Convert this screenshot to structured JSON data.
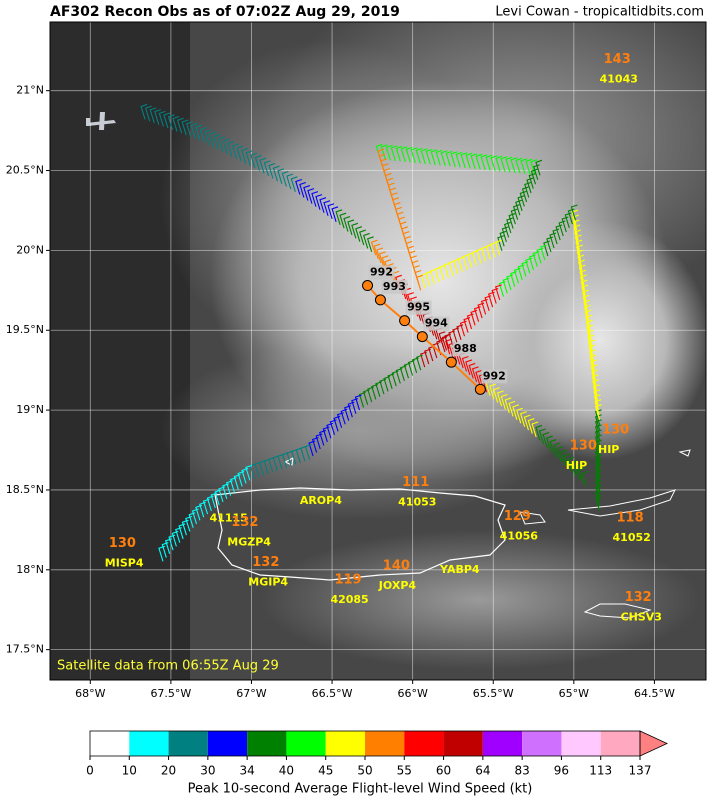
{
  "chart_data": {
    "type": "recon-map",
    "title": "AF302 Recon Obs as of 07:02Z Aug 29, 2019",
    "credit": "Levi Cowan - tropicaltidbits.com",
    "note": "Satellite data from 06:55Z Aug 29",
    "xlim": [
      -68.25,
      -64.18
    ],
    "ylim": [
      17.31,
      21.43
    ],
    "xticks": [
      {
        "value": -68,
        "label": "68°W"
      },
      {
        "value": -67.5,
        "label": "67.5°W"
      },
      {
        "value": -67,
        "label": "67°W"
      },
      {
        "value": -66.5,
        "label": "66.5°W"
      },
      {
        "value": -66,
        "label": "66°W"
      },
      {
        "value": -65.5,
        "label": "65.5°W"
      },
      {
        "value": -65,
        "label": "65°W"
      },
      {
        "value": -64.5,
        "label": "64.5°W"
      }
    ],
    "yticks": [
      {
        "value": 17.5,
        "label": "17.5°N"
      },
      {
        "value": 18,
        "label": "18°N"
      },
      {
        "value": 18.5,
        "label": "18.5°N"
      },
      {
        "value": 19,
        "label": "19°N"
      },
      {
        "value": 19.5,
        "label": "19.5°N"
      },
      {
        "value": 20,
        "label": "20°N"
      },
      {
        "value": 20.5,
        "label": "20.5°N"
      },
      {
        "value": 21,
        "label": "21°N"
      }
    ],
    "grid": true,
    "track": {
      "lon": [
        -67.66,
        -67.32,
        -66.95,
        -66.7,
        -66.45,
        -66.23,
        -66.08,
        -65.95,
        -65.77,
        -65.52,
        -65.21,
        -64.9,
        null,
        -64.84,
        -64.84,
        -64.9,
        -64.99,
        -65.18,
        -65.46,
        -65.7,
        -65.95,
        -66.33,
        -66.64,
        -67.01,
        -67.32,
        -67.57,
        null,
        -66.2,
        -65.21,
        -65.46,
        -65.95,
        -66.2
      ],
      "lat": [
        20.82,
        20.69,
        20.5,
        20.35,
        20.16,
        19.97,
        19.75,
        19.56,
        19.35,
        19.09,
        18.81,
        18.5,
        null,
        18.37,
        18.94,
        19.5,
        20.19,
        19.94,
        19.69,
        19.44,
        19.25,
        19.0,
        18.69,
        18.56,
        18.31,
        18.03,
        null,
        20.57,
        20.47,
        19.97,
        19.75,
        20.57
      ],
      "wind": [
        20,
        20,
        25,
        32,
        38,
        50,
        55,
        60,
        58,
        45,
        38,
        35,
        null,
        35,
        45,
        45,
        38,
        40,
        55,
        60,
        38,
        30,
        22,
        18,
        18,
        15,
        null,
        40,
        38,
        45,
        50,
        40
      ]
    },
    "drops": [
      {
        "label": "992",
        "lon": -66.28,
        "lat": 19.78
      },
      {
        "label": "993",
        "lon": -66.2,
        "lat": 19.69
      },
      {
        "label": "995",
        "lon": -66.05,
        "lat": 19.56
      },
      {
        "label": "994",
        "lon": -65.94,
        "lat": 19.46
      },
      {
        "label": "988",
        "lon": -65.76,
        "lat": 19.3
      },
      {
        "label": "992",
        "lon": -65.58,
        "lat": 19.13
      }
    ],
    "stations": [
      {
        "name": "41043",
        "speed": "143",
        "lon": -64.84,
        "lat": 21.07
      },
      {
        "name": "HIP",
        "speed": "130",
        "lon": -65.05,
        "lat": 18.65
      },
      {
        "name": "HIP",
        "speed": "130",
        "lon": -64.85,
        "lat": 18.75
      },
      {
        "name": "41053",
        "speed": "111",
        "lon": -66.09,
        "lat": 18.42
      },
      {
        "name": "AROP4",
        "lon": -66.7,
        "lat": 18.43
      },
      {
        "name": "41115",
        "lon": -67.26,
        "lat": 18.32
      },
      {
        "name": "MGZP4",
        "speed": "132",
        "lon": -67.15,
        "lat": 18.17
      },
      {
        "name": "MISP4",
        "speed": "130",
        "lon": -67.91,
        "lat": 18.04
      },
      {
        "name": "MGIP4",
        "speed": "132",
        "lon": -67.02,
        "lat": 17.92
      },
      {
        "name": "42085",
        "speed": "119",
        "lon": -66.51,
        "lat": 17.81
      },
      {
        "name": "JOXP4",
        "speed": "140",
        "lon": -66.21,
        "lat": 17.9
      },
      {
        "name": "41056",
        "speed": "129",
        "lon": -65.46,
        "lat": 18.21
      },
      {
        "name": "YABP4",
        "lon": -65.83,
        "lat": 18.0
      },
      {
        "name": "41052",
        "speed": "118",
        "lon": -64.76,
        "lat": 18.2
      },
      {
        "name": "CHSV3",
        "speed": "132",
        "lon": -64.71,
        "lat": 17.7
      }
    ],
    "colorbar": {
      "label": "Peak 10-second Average Flight-level Wind Speed (kt)",
      "ticks": [
        0,
        10,
        20,
        30,
        34,
        40,
        45,
        50,
        55,
        60,
        64,
        83,
        96,
        113,
        137
      ],
      "colors": [
        "#ffffff",
        "#00ffff",
        "#008080",
        "#0000ff",
        "#008000",
        "#00ff00",
        "#ffff00",
        "#ff8000",
        "#ff0000",
        "#c00000",
        "#a000ff",
        "#d070ff",
        "#ffc8ff",
        "#ffa8c0"
      ],
      "extend_color": "#ff8080"
    }
  }
}
